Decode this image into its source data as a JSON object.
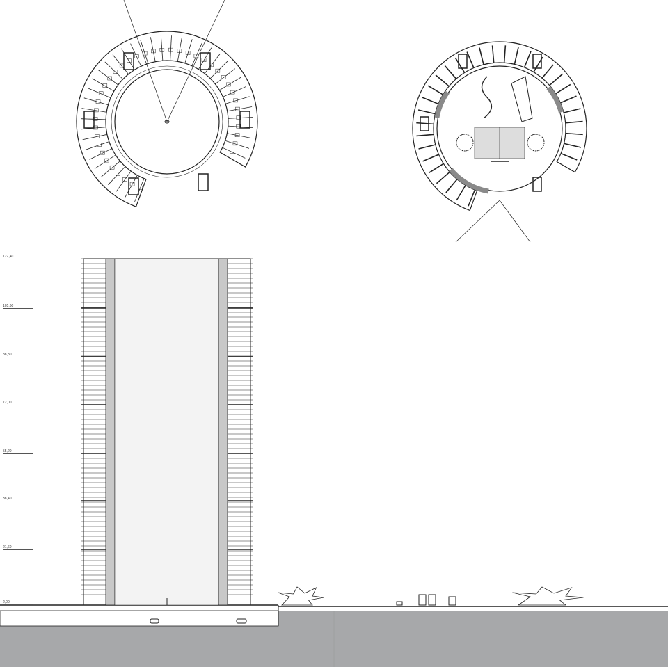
{
  "drawing": {
    "levels": [
      "122,40",
      "105,60",
      "88,80",
      "72,00",
      "55,20",
      "38,40",
      "21,60",
      "2,00"
    ],
    "colors": {
      "line": "#222222",
      "ground": "#a7a8aa",
      "core": "#8a8a8a"
    }
  }
}
